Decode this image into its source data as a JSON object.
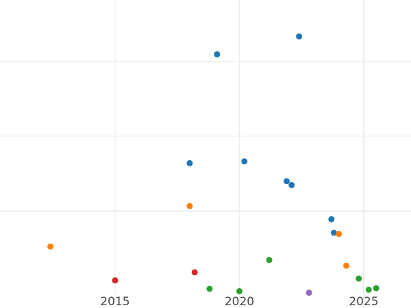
{
  "chart_data": {
    "type": "scatter",
    "title": "",
    "xlabel": "",
    "ylabel": "",
    "xlim": [
      2010.4,
      26.6
    ],
    "ylim": [
      0,
      100
    ],
    "grid": true,
    "legend": "none",
    "x_ticks": [
      {
        "value": 2015,
        "label": "2015"
      },
      {
        "value": 2020,
        "label": "2020"
      },
      {
        "value": 2025,
        "label": "2025"
      }
    ],
    "y_gridlines": [
      25,
      50,
      75
    ],
    "colors": {
      "blue": "#1f77b4",
      "orange": "#ff7f0e",
      "green": "#2ca02c",
      "red": "#d62728",
      "purple": "#9467bd",
      "grid": "#ebebeb"
    },
    "series": [
      {
        "color": "#1f77b4",
        "points": [
          {
            "x": 2019.1,
            "y": 77.3
          },
          {
            "x": 2022.4,
            "y": 83.3
          },
          {
            "x": 2018.0,
            "y": 41.0
          },
          {
            "x": 2020.2,
            "y": 41.6
          },
          {
            "x": 2021.9,
            "y": 35.0
          },
          {
            "x": 2022.1,
            "y": 33.7
          },
          {
            "x": 2023.7,
            "y": 22.3
          },
          {
            "x": 2023.8,
            "y": 17.8
          }
        ]
      },
      {
        "color": "#ff7f0e",
        "points": [
          {
            "x": 2012.4,
            "y": 13.2
          },
          {
            "x": 2018.0,
            "y": 26.7
          },
          {
            "x": 2024.0,
            "y": 17.4
          },
          {
            "x": 2024.3,
            "y": 6.8
          }
        ]
      },
      {
        "color": "#2ca02c",
        "points": [
          {
            "x": 2021.2,
            "y": 8.7
          },
          {
            "x": 2018.8,
            "y": -0.9
          },
          {
            "x": 2020.0,
            "y": -1.7
          },
          {
            "x": 2024.8,
            "y": 2.5
          },
          {
            "x": 2025.2,
            "y": -1.2
          },
          {
            "x": 2025.5,
            "y": -0.7
          }
        ]
      },
      {
        "color": "#d62728",
        "points": [
          {
            "x": 2015.0,
            "y": 1.9
          },
          {
            "x": 2018.2,
            "y": 4.6
          }
        ]
      },
      {
        "color": "#9467bd",
        "points": [
          {
            "x": 2022.8,
            "y": -2.2
          }
        ]
      }
    ]
  }
}
